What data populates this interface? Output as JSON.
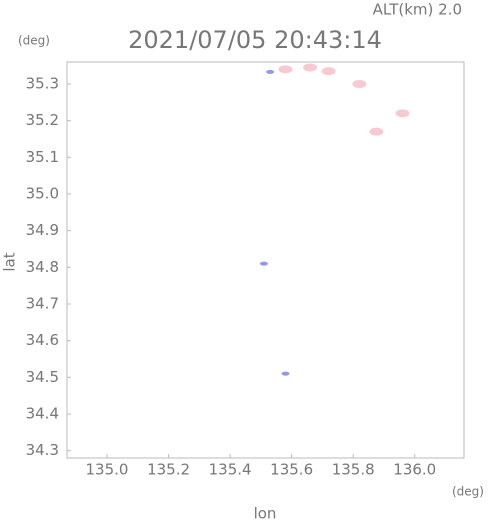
{
  "chart_data": {
    "type": "scatter",
    "title": "2021/07/05 20:43:14",
    "subtitle": "ALT(km) 2.0",
    "y_unit": "(deg)",
    "x_unit": "(deg)",
    "xlabel": "lon",
    "ylabel": "lat",
    "xlim": [
      134.87,
      136.16
    ],
    "xticks": [
      {
        "value": 135.0,
        "label": "135.0"
      },
      135.2,
      135.4,
      135.6,
      135.8,
      {
        "value": 136.0,
        "label": "136.0"
      }
    ],
    "ylim": [
      34.28,
      35.36
    ],
    "yticks": [
      35.3,
      35.2,
      35.1,
      {
        "value": 35.0,
        "label": "35.0"
      },
      34.9,
      34.8,
      34.7,
      34.6,
      34.5,
      34.4,
      34.3
    ],
    "series": [
      {
        "color": "#f6c4cc",
        "x": [
          135.58,
          135.66,
          135.72,
          135.82,
          135.875,
          135.96
        ],
        "values": [
          35.34,
          35.345,
          35.335,
          35.3,
          35.17,
          35.22
        ]
      },
      {
        "color": "#8c8ce6",
        "x": [
          135.53,
          135.51,
          135.58
        ],
        "values": [
          35.333,
          34.81,
          34.51
        ]
      }
    ]
  }
}
